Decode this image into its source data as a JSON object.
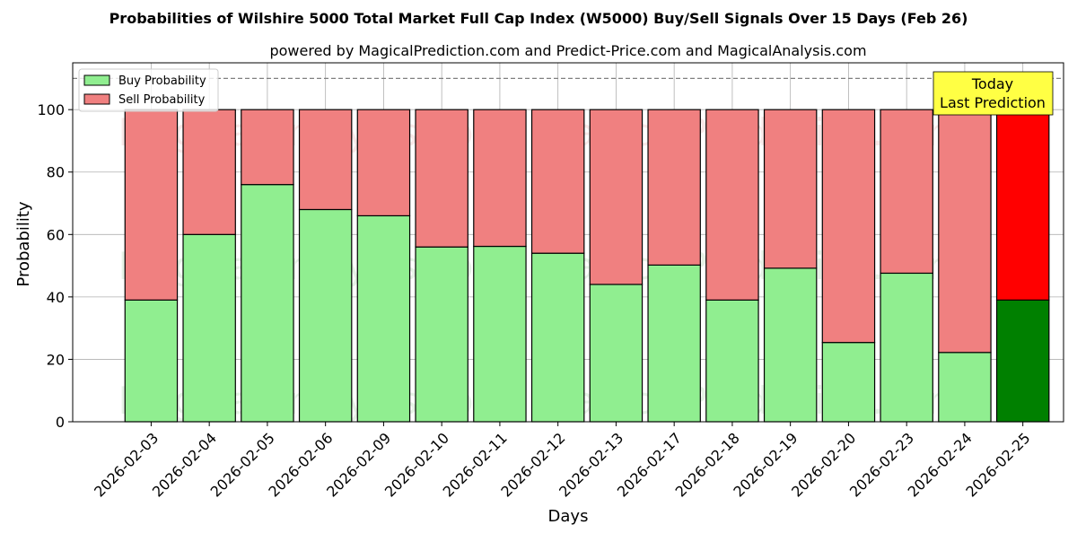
{
  "chart_data": {
    "type": "bar",
    "stacked": true,
    "title": "Probabilities of Wilshire 5000 Total Market Full Cap Index (W5000) Buy/Sell Signals Over 15 Days (Feb 26)",
    "subtitle": "powered by MagicalPrediction.com and Predict-Price.com and MagicalAnalysis.com",
    "xlabel": "Days",
    "ylabel": "Probability",
    "ylim": [
      0,
      115
    ],
    "yticks": [
      0,
      20,
      40,
      60,
      80,
      100
    ],
    "grid": true,
    "legend_position": "top-left",
    "categories": [
      "2026-02-03",
      "2026-02-04",
      "2026-02-05",
      "2026-02-06",
      "2026-02-09",
      "2026-02-10",
      "2026-02-11",
      "2026-02-12",
      "2026-02-13",
      "2026-02-17",
      "2026-02-18",
      "2026-02-19",
      "2026-02-20",
      "2026-02-23",
      "2026-02-24",
      "2026-02-25"
    ],
    "series": [
      {
        "name": "Buy Probability",
        "color": "#90ee90",
        "values": [
          39,
          60,
          76,
          68,
          66,
          56,
          56.2,
          54,
          44,
          50.2,
          39,
          49.2,
          25.4,
          47.6,
          22.2,
          39
        ]
      },
      {
        "name": "Sell Probability",
        "color": "#f08080",
        "values": [
          61,
          40,
          24,
          32,
          34,
          44,
          43.8,
          46,
          56,
          49.8,
          61,
          50.8,
          74.6,
          52.4,
          77.8,
          61
        ]
      }
    ],
    "highlight": {
      "index": 15,
      "buy_color": "#008000",
      "sell_color": "#ff0000"
    },
    "reference_line": {
      "y": 110,
      "style": "dashed",
      "color": "#808080"
    },
    "annotation": {
      "lines": [
        "Today",
        "Last Prediction"
      ],
      "background": "#ffff44"
    },
    "watermarks": [
      "MagicalAnalysis.com",
      "MagicalPrediction.com"
    ]
  }
}
